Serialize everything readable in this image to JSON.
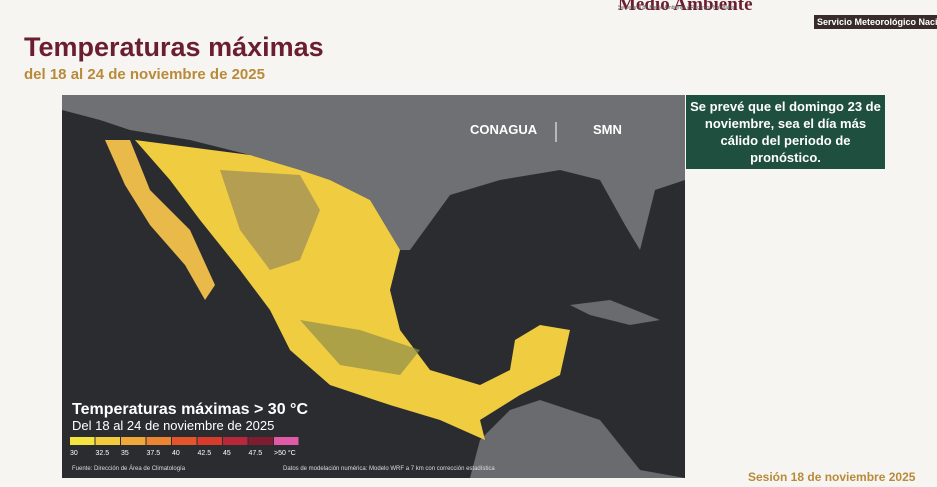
{
  "header": {
    "brand": "Medio Ambiente",
    "secretaria": "Secretaría de Medio Ambiente y Recursos Naturales",
    "smn": "Servicio Meteorológico Nacion"
  },
  "slide": {
    "title": "Temperaturas máximas",
    "subtitle": "del 18 al 24 de noviembre de 2025"
  },
  "map": {
    "logos": [
      "CONAGUA",
      "SMN"
    ],
    "title": "Temperaturas máximas > 30 °C",
    "subtitle": "Del 18 al 24 de noviembre de 2025",
    "legend": [
      {
        "label": "30",
        "color": "#f5e33f"
      },
      {
        "label": "32.5",
        "color": "#f3cc3c"
      },
      {
        "label": "35",
        "color": "#f0a83a"
      },
      {
        "label": "37.5",
        "color": "#ec8432"
      },
      {
        "label": "40",
        "color": "#e5552b"
      },
      {
        "label": "42.5",
        "color": "#d63b2c"
      },
      {
        "label": "45",
        "color": "#b8283a"
      },
      {
        "label": "47.5",
        "color": "#7e1c30"
      },
      {
        "label": ">50 °C",
        "color": "#e05aa8"
      }
    ],
    "source": "Fuente: Dirección de Área de Climatología",
    "model": "Datos de modelación numérica: Modelo WRF a 7 km con corrección estadística"
  },
  "callout": "Se prevé que el domingo 23 de noviembre, sea el día más cálido del periodo de pronóstico.",
  "footer": "Sesión 18 de noviembre 2025"
}
